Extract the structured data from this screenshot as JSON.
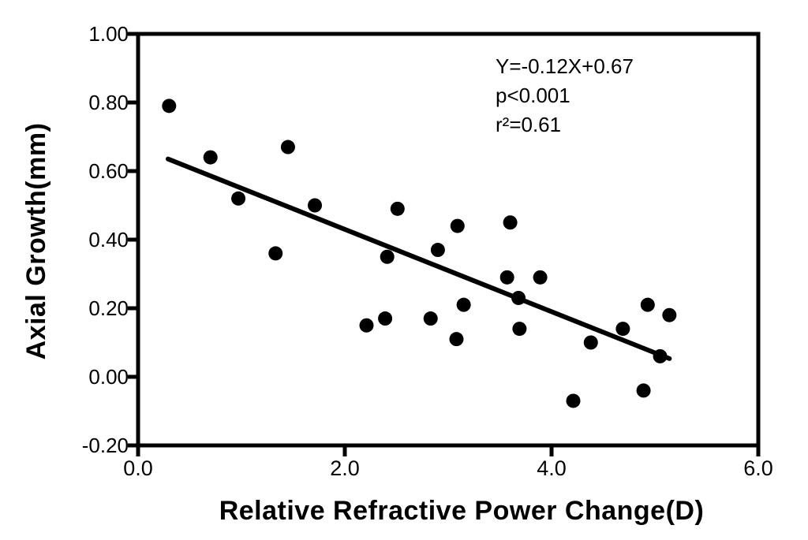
{
  "figure": {
    "background": "#ffffff",
    "ink_color": "#000000"
  },
  "chart_data": {
    "type": "scatter",
    "title": "",
    "xlabel": "Relative Refractive Power Change(D)",
    "ylabel": "Axial Growth(mm)",
    "xlim": [
      0.0,
      6.0
    ],
    "ylim": [
      -0.2,
      1.0
    ],
    "grid": false,
    "x_ticks": {
      "values": [
        0.0,
        2.0,
        4.0,
        6.0
      ],
      "labels": [
        "0.0",
        "2.0",
        "4.0",
        "6.0"
      ]
    },
    "y_ticks": {
      "values": [
        1.0,
        0.8,
        0.6,
        0.4,
        0.2,
        0.0,
        -0.2
      ],
      "labels": [
        "1.00",
        "0.80",
        "0.60",
        "0.40",
        "0.20",
        "0.00",
        "-0.20"
      ]
    },
    "points": [
      [
        0.3,
        0.79
      ],
      [
        0.7,
        0.64
      ],
      [
        0.97,
        0.52
      ],
      [
        1.33,
        0.36
      ],
      [
        1.45,
        0.67
      ],
      [
        1.71,
        0.5
      ],
      [
        2.21,
        0.15
      ],
      [
        2.39,
        0.17
      ],
      [
        2.41,
        0.35
      ],
      [
        2.51,
        0.49
      ],
      [
        2.83,
        0.17
      ],
      [
        2.9,
        0.37
      ],
      [
        3.08,
        0.11
      ],
      [
        3.09,
        0.44
      ],
      [
        3.15,
        0.21
      ],
      [
        3.57,
        0.29
      ],
      [
        3.6,
        0.45
      ],
      [
        3.68,
        0.23
      ],
      [
        3.69,
        0.14
      ],
      [
        3.89,
        0.29
      ],
      [
        4.21,
        -0.07
      ],
      [
        4.38,
        0.1
      ],
      [
        4.69,
        0.14
      ],
      [
        4.89,
        -0.04
      ],
      [
        4.93,
        0.21
      ],
      [
        5.05,
        0.06
      ],
      [
        5.14,
        0.18
      ]
    ],
    "regression_line": {
      "slope": -0.12,
      "intercept": 0.67,
      "x_start": 0.29,
      "x_end": 5.14
    },
    "annotation": {
      "line1": "Y=-0.12X+0.67",
      "line2": "p<0.001",
      "line3": "r²=0.61"
    },
    "marker": {
      "shape": "circle",
      "radius_px": 9,
      "color": "#000000"
    }
  }
}
